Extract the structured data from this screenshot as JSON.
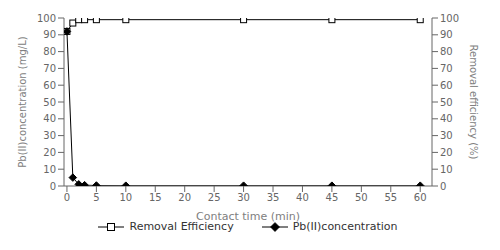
{
  "chart_data": {
    "type": "line",
    "xlabel": "Contact time (min)",
    "ylabel": "Pb(II)concentration (mg/L)",
    "y2label": "Removal efficiency (%)",
    "xlim": [
      -0.5,
      62
    ],
    "xticks": [
      0,
      5,
      10,
      15,
      20,
      25,
      30,
      35,
      40,
      45,
      50,
      55,
      60
    ],
    "ylim": [
      0,
      100
    ],
    "yticks": [
      0,
      10,
      20,
      30,
      40,
      50,
      60,
      70,
      80,
      90,
      100
    ],
    "y2lim": [
      0,
      100
    ],
    "y2ticks": [
      0,
      10,
      20,
      30,
      40,
      50,
      60,
      70,
      80,
      90,
      100
    ],
    "grid": false,
    "legend": "bottom",
    "series": [
      {
        "name": "Removal Efficiency",
        "axis": "y2",
        "color": "#000000",
        "marker": "square",
        "x": [
          0,
          1,
          2,
          3,
          5,
          10,
          30,
          45,
          60
        ],
        "values": [
          92,
          97,
          99,
          99,
          99,
          99,
          99,
          99,
          99
        ]
      },
      {
        "name": "Pb(II)concentration",
        "axis": "y",
        "color": "#000000",
        "marker": "diamond",
        "x": [
          0,
          1,
          2,
          3,
          5,
          10,
          30,
          45,
          60
        ],
        "values": [
          92,
          5,
          1,
          0.5,
          0.3,
          0.2,
          0.2,
          0.2,
          0.2
        ]
      }
    ]
  }
}
